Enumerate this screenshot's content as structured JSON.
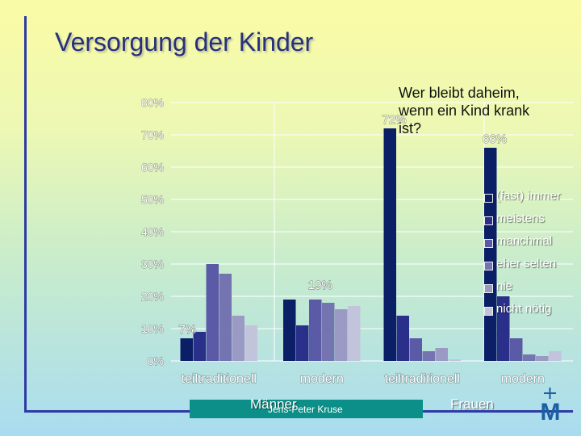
{
  "slide": {
    "title": "Versorgung der Kinder",
    "subtitle_lines": [
      "Wer bleibt daheim,",
      "wenn ein Kind krank",
      "ist?"
    ],
    "author": "Jens-Peter Kruse",
    "logo_text": "M"
  },
  "chart_data": {
    "type": "bar",
    "title": "Wer bleibt daheim, wenn ein Kind krank ist?",
    "xlabel": "",
    "ylabel": "",
    "ylim": [
      0,
      80
    ],
    "yticks": [
      "0%",
      "10%",
      "20%",
      "30%",
      "40%",
      "50%",
      "60%",
      "70%",
      "80%"
    ],
    "grid": true,
    "legend_position": "right",
    "groups": [
      {
        "name": "Männer",
        "label": "Männer"
      },
      {
        "name": "Frauen",
        "label": "Frauen"
      }
    ],
    "categories": [
      "teiltraditionell",
      "modern",
      "teiltraditionell",
      "modern"
    ],
    "category_group": [
      "Männer",
      "Männer",
      "Frauen",
      "Frauen"
    ],
    "series": [
      {
        "name": "(fast) immer",
        "color": "#0a1f66",
        "values": [
          7,
          19,
          72,
          66
        ]
      },
      {
        "name": "meistens",
        "color": "#2a2f8a",
        "values": [
          9,
          11,
          14,
          20
        ]
      },
      {
        "name": "manchmal",
        "color": "#5a5aa6",
        "values": [
          30,
          19,
          7,
          7
        ]
      },
      {
        "name": "eher selten",
        "color": "#7474b0",
        "values": [
          27,
          18,
          3,
          2
        ]
      },
      {
        "name": "nie",
        "color": "#9a9ac4",
        "values": [
          14,
          16,
          4,
          1.5
        ]
      },
      {
        "name": "nicht nötig",
        "color": "#c2c4dc",
        "values": [
          11,
          17,
          0.5,
          3
        ]
      }
    ],
    "data_labels": [
      {
        "text": "7%",
        "category": 0,
        "series": 0
      },
      {
        "text": "19%",
        "category": 1,
        "series": 0
      },
      {
        "text": "72%",
        "category": 2,
        "series": 0
      },
      {
        "text": "66%",
        "category": 3,
        "series": 0
      }
    ]
  }
}
